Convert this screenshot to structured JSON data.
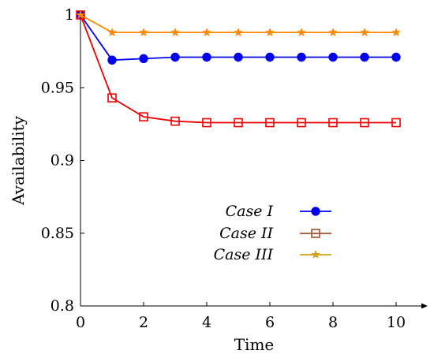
{
  "chart_data": {
    "type": "line",
    "xlabel": "Time",
    "ylabel": "Availability",
    "xlim": [
      0,
      11
    ],
    "ylim": [
      0.8,
      1.0
    ],
    "x_ticks": [
      0,
      2,
      4,
      6,
      8,
      10
    ],
    "y_ticks": [
      0.8,
      0.85,
      0.9,
      0.95,
      1.0
    ],
    "y_tick_labels": [
      "0.8",
      "0.85",
      "0.9",
      "0.95",
      "1"
    ],
    "grid": false,
    "legend_position": "center-right",
    "x": [
      0,
      1,
      2,
      3,
      4,
      5,
      6,
      7,
      8,
      9,
      10
    ],
    "series": [
      {
        "name": "Case I",
        "color": "#0000ee",
        "marker": "filled-circle",
        "values": [
          1.0,
          0.969,
          0.97,
          0.971,
          0.971,
          0.971,
          0.971,
          0.971,
          0.971,
          0.971,
          0.971
        ]
      },
      {
        "name": "Case II",
        "color": "#ee0000",
        "marker": "open-square",
        "values": [
          1.0,
          0.943,
          0.93,
          0.927,
          0.926,
          0.926,
          0.926,
          0.926,
          0.926,
          0.926,
          0.926
        ]
      },
      {
        "name": "Case III",
        "color": "#ff8800",
        "marker": "star",
        "values": [
          1.0,
          0.988,
          0.988,
          0.988,
          0.988,
          0.988,
          0.988,
          0.988,
          0.988,
          0.988,
          0.988
        ]
      }
    ]
  }
}
